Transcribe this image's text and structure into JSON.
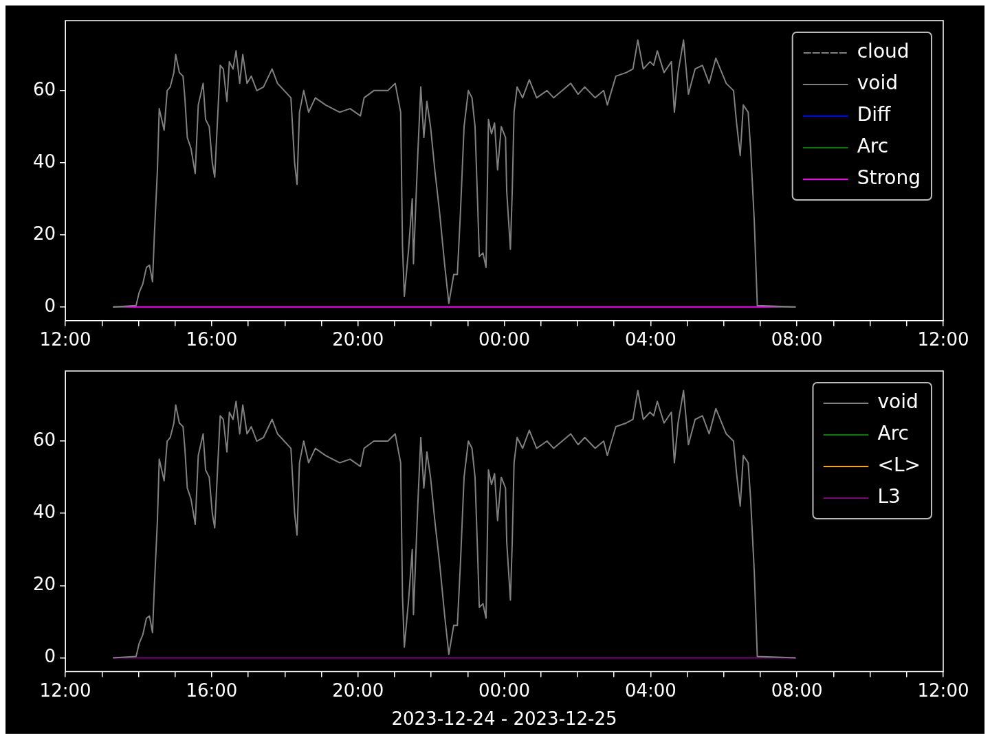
{
  "chart_data": [
    {
      "type": "line",
      "legend": "top right",
      "xlim": [
        "2023-12-24T12:00",
        "2023-12-25T12:00"
      ],
      "xticks": [
        {
          "value": "2023-12-24T12:00",
          "label": "12:00"
        },
        {
          "value": "2023-12-24T13:00",
          "label": null
        },
        {
          "value": "2023-12-24T14:00",
          "label": null
        },
        {
          "value": "2023-12-24T15:00",
          "label": null
        },
        {
          "value": "2023-12-24T16:00",
          "label": "16:00"
        },
        {
          "value": "2023-12-24T17:00",
          "label": null
        },
        {
          "value": "2023-12-24T18:00",
          "label": null
        },
        {
          "value": "2023-12-24T19:00",
          "label": null
        },
        {
          "value": "2023-12-24T20:00",
          "label": "20:00"
        },
        {
          "value": "2023-12-24T21:00",
          "label": null
        },
        {
          "value": "2023-12-24T22:00",
          "label": null
        },
        {
          "value": "2023-12-24T23:00",
          "label": null
        },
        {
          "value": "2023-12-25T00:00",
          "label": "00:00"
        },
        {
          "value": "2023-12-25T01:00",
          "label": null
        },
        {
          "value": "2023-12-25T02:00",
          "label": null
        },
        {
          "value": "2023-12-25T03:00",
          "label": null
        },
        {
          "value": "2023-12-25T04:00",
          "label": "04:00"
        },
        {
          "value": "2023-12-25T05:00",
          "label": null
        },
        {
          "value": "2023-12-25T06:00",
          "label": null
        },
        {
          "value": "2023-12-25T07:00",
          "label": null
        },
        {
          "value": "2023-12-25T08:00",
          "label": "08:00"
        },
        {
          "value": "2023-12-25T09:00",
          "label": null
        },
        {
          "value": "2023-12-25T10:00",
          "label": null
        },
        {
          "value": "2023-12-25T11:00",
          "label": null
        },
        {
          "value": "2023-12-25T12:00",
          "label": "12:00"
        }
      ],
      "ylim": [
        -3.8,
        79.4
      ],
      "yticks": [
        0,
        20,
        40,
        60
      ],
      "series": [
        {
          "name": "cloud",
          "color": "#808080",
          "line_style": "dashed"
        },
        {
          "name": "void",
          "color": "#808080",
          "x": [
            "2023-12-24T13:18",
            "2023-12-24T13:56",
            "2023-12-24T14:01",
            "2023-12-24T14:07",
            "2023-12-24T14:13",
            "2023-12-24T14:18",
            "2023-12-24T14:23",
            "2023-12-24T14:26",
            "2023-12-24T14:31",
            "2023-12-24T14:34",
            "2023-12-24T14:38",
            "2023-12-24T14:42",
            "2023-12-24T14:47",
            "2023-12-24T14:52",
            "2023-12-24T14:58",
            "2023-12-24T15:01",
            "2023-12-24T15:07",
            "2023-12-24T15:13",
            "2023-12-24T15:16",
            "2023-12-24T15:20",
            "2023-12-24T15:26",
            "2023-12-24T15:33",
            "2023-12-24T15:38",
            "2023-12-24T15:46",
            "2023-12-24T15:50",
            "2023-12-24T15:56",
            "2023-12-24T16:01",
            "2023-12-24T16:05",
            "2023-12-24T16:09",
            "2023-12-24T16:14",
            "2023-12-24T16:19",
            "2023-12-24T16:25",
            "2023-12-24T16:29",
            "2023-12-24T16:35",
            "2023-12-24T16:40",
            "2023-12-24T16:46",
            "2023-12-24T16:51",
            "2023-12-24T16:58",
            "2023-12-24T17:05",
            "2023-12-24T17:14",
            "2023-12-24T17:25",
            "2023-12-24T17:39",
            "2023-12-24T17:48",
            "2023-12-24T17:59",
            "2023-12-24T18:10",
            "2023-12-24T18:16",
            "2023-12-24T18:20",
            "2023-12-24T18:24",
            "2023-12-24T18:31",
            "2023-12-24T18:39",
            "2023-12-24T18:50",
            "2023-12-24T19:07",
            "2023-12-24T19:30",
            "2023-12-24T19:47",
            "2023-12-24T20:04",
            "2023-12-24T20:10",
            "2023-12-24T20:26",
            "2023-12-24T20:49",
            "2023-12-24T21:01",
            "2023-12-24T21:10",
            "2023-12-24T21:13",
            "2023-12-24T21:16",
            "2023-12-24T21:23",
            "2023-12-24T21:29",
            "2023-12-24T21:31",
            "2023-12-24T21:38",
            "2023-12-24T21:43",
            "2023-12-24T21:48",
            "2023-12-24T21:53",
            "2023-12-24T21:59",
            "2023-12-24T22:06",
            "2023-12-24T22:14",
            "2023-12-24T22:22",
            "2023-12-24T22:29",
            "2023-12-24T22:37",
            "2023-12-24T22:43",
            "2023-12-24T22:48",
            "2023-12-24T22:54",
            "2023-12-24T23:01",
            "2023-12-24T23:07",
            "2023-12-24T23:12",
            "2023-12-24T23:16",
            "2023-12-24T23:19",
            "2023-12-24T23:25",
            "2023-12-24T23:30",
            "2023-12-24T23:34",
            "2023-12-24T23:39",
            "2023-12-24T23:44",
            "2023-12-24T23:49",
            "2023-12-24T23:55",
            "2023-12-25T00:02",
            "2023-12-25T00:04",
            "2023-12-25T00:10",
            "2023-12-25T00:13",
            "2023-12-25T00:16",
            "2023-12-25T00:21",
            "2023-12-25T00:30",
            "2023-12-25T00:41",
            "2023-12-25T00:53",
            "2023-12-25T01:10",
            "2023-12-25T01:21",
            "2023-12-25T01:35",
            "2023-12-25T01:49",
            "2023-12-25T02:01",
            "2023-12-25T02:12",
            "2023-12-25T02:29",
            "2023-12-25T02:43",
            "2023-12-25T02:49",
            "2023-12-25T03:03",
            "2023-12-25T03:20",
            "2023-12-25T03:31",
            "2023-12-25T03:39",
            "2023-12-25T03:48",
            "2023-12-25T03:59",
            "2023-12-25T04:05",
            "2023-12-25T04:11",
            "2023-12-25T04:22",
            "2023-12-25T04:34",
            "2023-12-25T04:39",
            "2023-12-25T04:45",
            "2023-12-25T04:54",
            "2023-12-25T05:02",
            "2023-12-25T05:13",
            "2023-12-25T05:25",
            "2023-12-25T05:36",
            "2023-12-25T05:47",
            "2023-12-25T06:04",
            "2023-12-25T06:16",
            "2023-12-25T06:21",
            "2023-12-25T06:27",
            "2023-12-25T06:32",
            "2023-12-25T06:40",
            "2023-12-25T06:44",
            "2023-12-25T06:50",
            "2023-12-25T06:55",
            "2023-12-25T07:58"
          ],
          "values": [
            0,
            0.4,
            4,
            6.4,
            11,
            11.6,
            7,
            20,
            38,
            55,
            52,
            49,
            60,
            61,
            65,
            70,
            65,
            64,
            58,
            47,
            44,
            37,
            56,
            62,
            52,
            50,
            40,
            36,
            50,
            67,
            66,
            57,
            68,
            66,
            71,
            62,
            70,
            62,
            64,
            60,
            61,
            66,
            62,
            60,
            58,
            40,
            34,
            54,
            60,
            54,
            58,
            56,
            54,
            55,
            53,
            58,
            60,
            60,
            62,
            54,
            17,
            3,
            16,
            30,
            12,
            42,
            61,
            47,
            57,
            50,
            38,
            26,
            12,
            1,
            9,
            9,
            26,
            50,
            60,
            58,
            50,
            30,
            14,
            15,
            11,
            52,
            48,
            51,
            38,
            50,
            47,
            32,
            16,
            32,
            54,
            61,
            58,
            63,
            58,
            60,
            58,
            60,
            62,
            59,
            61,
            58,
            60,
            56,
            64,
            65,
            66,
            74,
            66,
            68,
            67,
            71,
            65,
            68,
            54,
            65,
            74,
            59,
            66,
            67,
            62,
            69,
            62,
            60,
            51,
            42,
            56,
            54,
            44,
            24,
            0.4,
            0
          ]
        },
        {
          "name": "Diff",
          "color": "#0000ff"
        },
        {
          "name": "Arc",
          "color": "#008000"
        },
        {
          "name": "Strong",
          "color": "#ff00ff",
          "x": [
            "2023-12-24T13:18",
            "2023-12-25T07:58"
          ],
          "values": [
            0,
            0
          ]
        }
      ]
    },
    {
      "type": "line",
      "legend": "top right",
      "xlabel": "2023-12-24 - 2023-12-25",
      "xlim": [
        "2023-12-24T12:00",
        "2023-12-25T12:00"
      ],
      "xticks": [
        {
          "value": "2023-12-24T12:00",
          "label": "12:00"
        },
        {
          "value": "2023-12-24T13:00",
          "label": null
        },
        {
          "value": "2023-12-24T14:00",
          "label": null
        },
        {
          "value": "2023-12-24T15:00",
          "label": null
        },
        {
          "value": "2023-12-24T16:00",
          "label": "16:00"
        },
        {
          "value": "2023-12-24T17:00",
          "label": null
        },
        {
          "value": "2023-12-24T18:00",
          "label": null
        },
        {
          "value": "2023-12-24T19:00",
          "label": null
        },
        {
          "value": "2023-12-24T20:00",
          "label": "20:00"
        },
        {
          "value": "2023-12-24T21:00",
          "label": null
        },
        {
          "value": "2023-12-24T22:00",
          "label": null
        },
        {
          "value": "2023-12-24T23:00",
          "label": null
        },
        {
          "value": "2023-12-25T00:00",
          "label": "00:00"
        },
        {
          "value": "2023-12-25T01:00",
          "label": null
        },
        {
          "value": "2023-12-25T02:00",
          "label": null
        },
        {
          "value": "2023-12-25T03:00",
          "label": null
        },
        {
          "value": "2023-12-25T04:00",
          "label": "04:00"
        },
        {
          "value": "2023-12-25T05:00",
          "label": null
        },
        {
          "value": "2023-12-25T06:00",
          "label": null
        },
        {
          "value": "2023-12-25T07:00",
          "label": null
        },
        {
          "value": "2023-12-25T08:00",
          "label": "08:00"
        },
        {
          "value": "2023-12-25T09:00",
          "label": null
        },
        {
          "value": "2023-12-25T10:00",
          "label": null
        },
        {
          "value": "2023-12-25T11:00",
          "label": null
        },
        {
          "value": "2023-12-25T12:00",
          "label": "12:00"
        }
      ],
      "ylim": [
        -3.8,
        79.4
      ],
      "yticks": [
        0,
        20,
        40,
        60
      ],
      "series": [
        {
          "name": "void",
          "color": "#808080",
          "x": [
            "2023-12-24T13:18",
            "2023-12-24T13:56",
            "2023-12-24T14:01",
            "2023-12-24T14:07",
            "2023-12-24T14:13",
            "2023-12-24T14:18",
            "2023-12-24T14:23",
            "2023-12-24T14:26",
            "2023-12-24T14:31",
            "2023-12-24T14:34",
            "2023-12-24T14:38",
            "2023-12-24T14:42",
            "2023-12-24T14:47",
            "2023-12-24T14:52",
            "2023-12-24T14:58",
            "2023-12-24T15:01",
            "2023-12-24T15:07",
            "2023-12-24T15:13",
            "2023-12-24T15:16",
            "2023-12-24T15:20",
            "2023-12-24T15:26",
            "2023-12-24T15:33",
            "2023-12-24T15:38",
            "2023-12-24T15:46",
            "2023-12-24T15:50",
            "2023-12-24T15:56",
            "2023-12-24T16:01",
            "2023-12-24T16:05",
            "2023-12-24T16:09",
            "2023-12-24T16:14",
            "2023-12-24T16:19",
            "2023-12-24T16:25",
            "2023-12-24T16:29",
            "2023-12-24T16:35",
            "2023-12-24T16:40",
            "2023-12-24T16:46",
            "2023-12-24T16:51",
            "2023-12-24T16:58",
            "2023-12-24T17:05",
            "2023-12-24T17:14",
            "2023-12-24T17:25",
            "2023-12-24T17:39",
            "2023-12-24T17:48",
            "2023-12-24T17:59",
            "2023-12-24T18:10",
            "2023-12-24T18:16",
            "2023-12-24T18:20",
            "2023-12-24T18:24",
            "2023-12-24T18:31",
            "2023-12-24T18:39",
            "2023-12-24T18:50",
            "2023-12-24T19:07",
            "2023-12-24T19:30",
            "2023-12-24T19:47",
            "2023-12-24T20:04",
            "2023-12-24T20:10",
            "2023-12-24T20:26",
            "2023-12-24T20:49",
            "2023-12-24T21:01",
            "2023-12-24T21:10",
            "2023-12-24T21:13",
            "2023-12-24T21:16",
            "2023-12-24T21:23",
            "2023-12-24T21:29",
            "2023-12-24T21:31",
            "2023-12-24T21:38",
            "2023-12-24T21:43",
            "2023-12-24T21:48",
            "2023-12-24T21:53",
            "2023-12-24T21:59",
            "2023-12-24T22:06",
            "2023-12-24T22:14",
            "2023-12-24T22:22",
            "2023-12-24T22:29",
            "2023-12-24T22:37",
            "2023-12-24T22:43",
            "2023-12-24T22:48",
            "2023-12-24T22:54",
            "2023-12-24T23:01",
            "2023-12-24T23:07",
            "2023-12-24T23:12",
            "2023-12-24T23:16",
            "2023-12-24T23:19",
            "2023-12-24T23:25",
            "2023-12-24T23:30",
            "2023-12-24T23:34",
            "2023-12-24T23:39",
            "2023-12-24T23:44",
            "2023-12-24T23:49",
            "2023-12-24T23:55",
            "2023-12-25T00:02",
            "2023-12-25T00:04",
            "2023-12-25T00:10",
            "2023-12-25T00:13",
            "2023-12-25T00:16",
            "2023-12-25T00:21",
            "2023-12-25T00:30",
            "2023-12-25T00:41",
            "2023-12-25T00:53",
            "2023-12-25T01:10",
            "2023-12-25T01:21",
            "2023-12-25T01:35",
            "2023-12-25T01:49",
            "2023-12-25T02:01",
            "2023-12-25T02:12",
            "2023-12-25T02:29",
            "2023-12-25T02:43",
            "2023-12-25T02:49",
            "2023-12-25T03:03",
            "2023-12-25T03:20",
            "2023-12-25T03:31",
            "2023-12-25T03:39",
            "2023-12-25T03:48",
            "2023-12-25T03:59",
            "2023-12-25T04:05",
            "2023-12-25T04:11",
            "2023-12-25T04:22",
            "2023-12-25T04:34",
            "2023-12-25T04:39",
            "2023-12-25T04:45",
            "2023-12-25T04:54",
            "2023-12-25T05:02",
            "2023-12-25T05:13",
            "2023-12-25T05:25",
            "2023-12-25T05:36",
            "2023-12-25T05:47",
            "2023-12-25T06:04",
            "2023-12-25T06:16",
            "2023-12-25T06:21",
            "2023-12-25T06:27",
            "2023-12-25T06:32",
            "2023-12-25T06:40",
            "2023-12-25T06:44",
            "2023-12-25T06:50",
            "2023-12-25T06:55",
            "2023-12-25T07:58"
          ],
          "values": [
            0,
            0.4,
            4,
            6.4,
            11,
            11.6,
            7,
            20,
            38,
            55,
            52,
            49,
            60,
            61,
            65,
            70,
            65,
            64,
            58,
            47,
            44,
            37,
            56,
            62,
            52,
            50,
            40,
            36,
            50,
            67,
            66,
            57,
            68,
            66,
            71,
            62,
            70,
            62,
            64,
            60,
            61,
            66,
            62,
            60,
            58,
            40,
            34,
            54,
            60,
            54,
            58,
            56,
            54,
            55,
            53,
            58,
            60,
            60,
            62,
            54,
            17,
            3,
            16,
            30,
            12,
            42,
            61,
            47,
            57,
            50,
            38,
            26,
            12,
            1,
            9,
            9,
            26,
            50,
            60,
            58,
            50,
            30,
            14,
            15,
            11,
            52,
            48,
            51,
            38,
            50,
            47,
            32,
            16,
            32,
            54,
            61,
            58,
            63,
            58,
            60,
            58,
            60,
            62,
            59,
            61,
            58,
            60,
            56,
            64,
            65,
            66,
            74,
            66,
            68,
            67,
            71,
            65,
            68,
            54,
            65,
            74,
            59,
            66,
            67,
            62,
            69,
            62,
            60,
            51,
            42,
            56,
            54,
            44,
            24,
            0.4,
            0
          ]
        },
        {
          "name": "Arc",
          "color": "#008000"
        },
        {
          "name": "<L>",
          "color": "#ffa500"
        },
        {
          "name": "L3",
          "color": "#800080",
          "x": [
            "2023-12-24T13:18",
            "2023-12-25T07:58"
          ],
          "values": [
            0,
            0
          ]
        }
      ]
    }
  ]
}
